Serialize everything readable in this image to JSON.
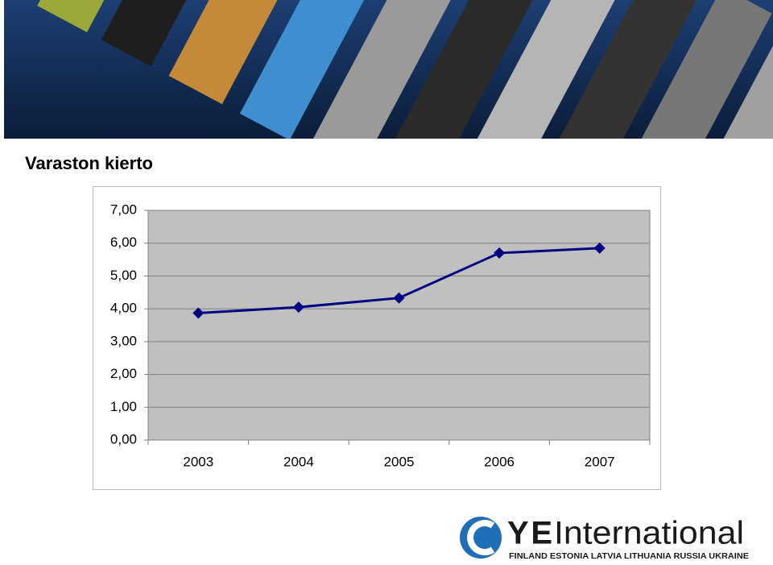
{
  "chart_data": {
    "type": "line",
    "title": "Varaston kierto",
    "categories": [
      "2003",
      "2004",
      "2005",
      "2006",
      "2007"
    ],
    "values": [
      3.87,
      4.05,
      4.33,
      5.7,
      5.85
    ],
    "color": "#000080",
    "ylim": [
      0,
      7
    ],
    "yticks": [
      {
        "value": 0,
        "label": "0,00"
      },
      {
        "value": 1,
        "label": "1,00"
      },
      {
        "value": 2,
        "label": "2,00"
      },
      {
        "value": 3,
        "label": "3,00"
      },
      {
        "value": 4,
        "label": "4,00"
      },
      {
        "value": 5,
        "label": "5,00"
      },
      {
        "value": 6,
        "label": "6,00"
      },
      {
        "value": 7,
        "label": "7,00"
      }
    ],
    "grid": true
  },
  "logo": {
    "brand_bold": "YE",
    "brand": "International",
    "countries": "FINLAND ESTONIA LATVIA LITHUANIA RUSSIA UKRAINE"
  }
}
